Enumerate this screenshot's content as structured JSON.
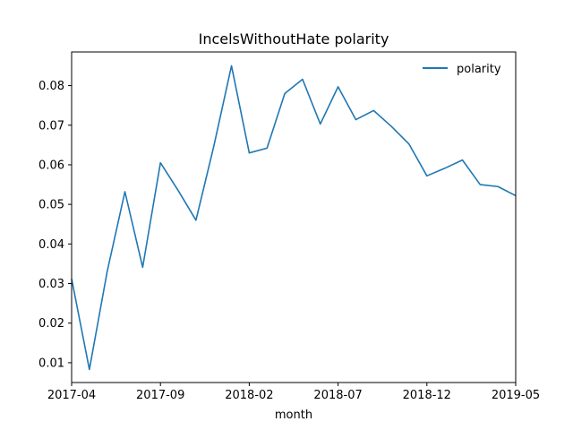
{
  "chart_data": {
    "type": "line",
    "title": "IncelsWithoutHate polarity",
    "xlabel": "month",
    "ylabel": "",
    "x": [
      "2017-04",
      "2017-05",
      "2017-06",
      "2017-07",
      "2017-08",
      "2017-09",
      "2017-10",
      "2017-11",
      "2017-12",
      "2018-01",
      "2018-02",
      "2018-03",
      "2018-04",
      "2018-05",
      "2018-06",
      "2018-07",
      "2018-08",
      "2018-09",
      "2018-10",
      "2018-11",
      "2018-12",
      "2019-01",
      "2019-02",
      "2019-03",
      "2019-04",
      "2019-05"
    ],
    "series": [
      {
        "name": "polarity",
        "color": "#1f77b4",
        "values": [
          0.0312,
          0.0083,
          0.033,
          0.0532,
          0.0341,
          0.0605,
          0.0535,
          0.046,
          0.0646,
          0.085,
          0.063,
          0.0642,
          0.078,
          0.0816,
          0.0703,
          0.0797,
          0.0714,
          0.0737,
          0.0697,
          0.0652,
          0.0572,
          0.0591,
          0.0612,
          0.055,
          0.0545,
          0.0522
        ]
      }
    ],
    "xlim": [
      "2017-04",
      "2019-05"
    ],
    "ylim": [
      0.005,
      0.0885
    ],
    "xticks": [
      "2017-04",
      "2017-09",
      "2018-02",
      "2018-07",
      "2018-12",
      "2019-05"
    ],
    "yticks": [
      "0.01",
      "0.02",
      "0.03",
      "0.04",
      "0.05",
      "0.06",
      "0.07",
      "0.08"
    ],
    "grid": false,
    "legend_position": "top-right"
  }
}
